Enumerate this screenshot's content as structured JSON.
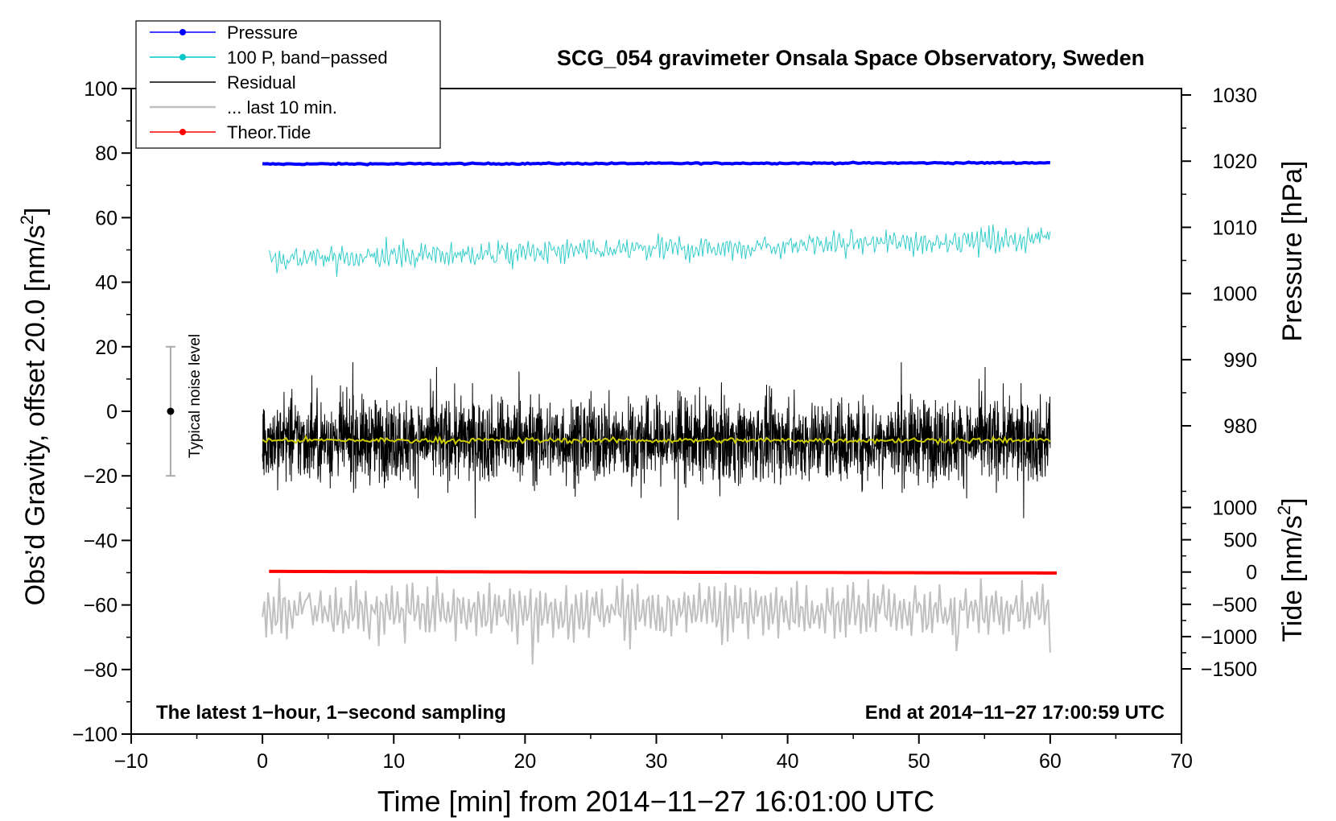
{
  "chart_data": {
    "type": "line",
    "title": "SCG_054 gravimeter Onsala Space Observatory, Sweden",
    "xlabel": "Time [min] from 2014−11−27 16:01:00 UTC",
    "ylabel_main": "Obs’d Gravity, offset 20.0 [nm/s",
    "ylabel_main_sup": "2",
    "ylabel_main_end": "]",
    "ylabel_pressure": "Pressure [hPa]",
    "ylabel_tide": "Tide [nm/s",
    "ylabel_tide_sup": "2",
    "ylabel_tide_end": "]",
    "xlim": [
      -10,
      70
    ],
    "ylim": [
      -100,
      100
    ],
    "x_ticks": [
      -10,
      0,
      10,
      20,
      30,
      40,
      50,
      60,
      70
    ],
    "x_tick_labels": [
      "−10",
      "0",
      "10",
      "20",
      "30",
      "40",
      "50",
      "60",
      "70"
    ],
    "y_ticks": [
      100,
      80,
      60,
      40,
      20,
      0,
      -20,
      -40,
      -60,
      -80,
      -100
    ],
    "y_tick_labels": [
      "100",
      "80",
      "60",
      "40",
      "20",
      "0",
      "−20",
      "−40",
      "−60",
      "−80",
      "−100"
    ],
    "pressure_axis": {
      "ticks": [
        1030,
        1020,
        1010,
        1000,
        990,
        980
      ],
      "tick_labels": [
        "1030",
        "1020",
        "1010",
        "1000",
        "990",
        "980"
      ],
      "ref": {
        "value": 1020,
        "gravity": 77.5
      },
      "scale": 2.05
    },
    "tide_axis": {
      "ticks": [
        1000,
        500,
        0,
        -500,
        -1000,
        -1500
      ],
      "tick_labels": [
        "1000",
        "500",
        "0",
        "−500",
        "−1000",
        "−1500"
      ],
      "ref": {
        "value": 0,
        "gravity": -49.8
      },
      "scale": 0.02
    },
    "legend": {
      "position": "top-left",
      "entries": [
        {
          "label": "Pressure",
          "color": "#0000ff",
          "marker": true
        },
        {
          "label": "100 P, band−passed",
          "color": "#00c8c8",
          "marker": true
        },
        {
          "label": "Residual",
          "color": "#000000",
          "marker": false
        },
        {
          "label": "... last 10 min.",
          "color": "#c0c0c0",
          "marker": false
        },
        {
          "label": "Theor.Tide",
          "color": "#ff0000",
          "marker": true
        }
      ]
    },
    "series": [
      {
        "name": "Pressure",
        "color": "#0000ff",
        "x_range": [
          0,
          60
        ],
        "y_start": 76.6,
        "y_end": 77.0,
        "noise": 0.15
      },
      {
        "name": "100 P, band−passed",
        "color": "#33cccc",
        "x_range": [
          0.5,
          60
        ],
        "y_start": 47,
        "y_end": 53.5,
        "noise": 3.5,
        "spike": 6
      },
      {
        "name": "Residual",
        "color": "#000000",
        "x_range": [
          0,
          60
        ],
        "y_center": -9,
        "noise": 9,
        "spike": 20
      },
      {
        "name": "Residual smoothed",
        "color": "#cccc00",
        "x_range": [
          0,
          60
        ],
        "y_center": -9,
        "noise": 0.6
      },
      {
        "name": "... last 10 min.",
        "color": "#c0c0c0",
        "x_range": [
          0,
          60
        ],
        "y_center": -62,
        "noise": 8,
        "spike": 15
      },
      {
        "name": "Theor.Tide",
        "color": "#ff0000",
        "x_range": [
          0.5,
          60.5
        ],
        "y_start": -49.6,
        "y_end": -50.1
      }
    ],
    "noise_bar": {
      "label": "Typical noise level",
      "x": -7,
      "center": 0,
      "half_range": 20
    },
    "annotations": [
      {
        "text": "The latest 1−hour, 1−second sampling",
        "position": "bottom-left"
      },
      {
        "text": "End at 2014−11−27 17:00:59 UTC",
        "position": "bottom-right"
      }
    ]
  }
}
